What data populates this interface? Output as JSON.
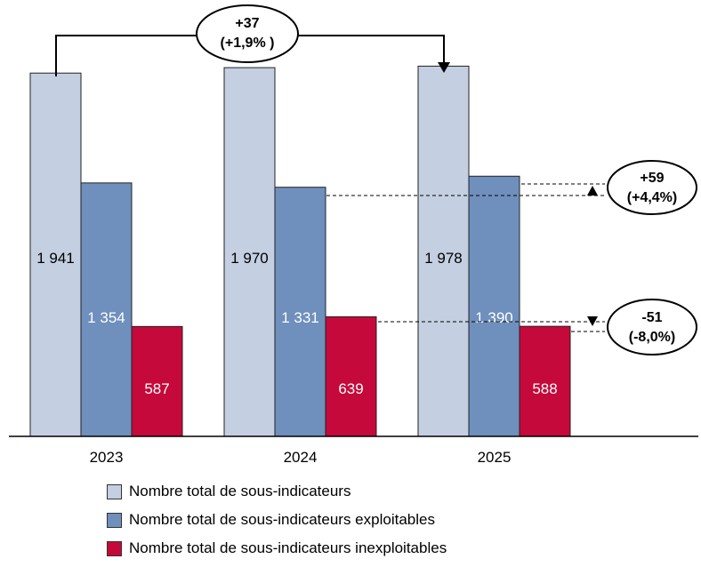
{
  "chart_data": {
    "type": "bar",
    "categories": [
      "2023",
      "2024",
      "2025"
    ],
    "series": [
      {
        "name": "Nombre total de sous-indicateurs",
        "values": [
          1941,
          1970,
          1978
        ],
        "color": "#c4cfe2",
        "label_color": "#000000",
        "labels": [
          "1 941",
          "1 970",
          "1 978"
        ]
      },
      {
        "name": "Nombre total de sous-indicateurs exploitables",
        "values": [
          1354,
          1331,
          1390
        ],
        "color": "#6f8fbd",
        "label_color": "#ffffff",
        "labels": [
          "1 354",
          "1 331",
          "1 390"
        ]
      },
      {
        "name": "Nombre total de sous-indicateurs inexploitables",
        "values": [
          587,
          639,
          588
        ],
        "color": "#c5093a",
        "label_color": "#ffffff",
        "labels": [
          "587",
          "639",
          "588"
        ]
      }
    ],
    "annotations": {
      "total_change": {
        "line1": "+37",
        "line2": "(+1,9% )"
      },
      "exploitables_change": {
        "line1": "+59",
        "line2": "(+4,4%)"
      },
      "inexploitables_change": {
        "line1": "-51",
        "line2": "(-8,0%)"
      }
    },
    "legend_position": "bottom"
  }
}
